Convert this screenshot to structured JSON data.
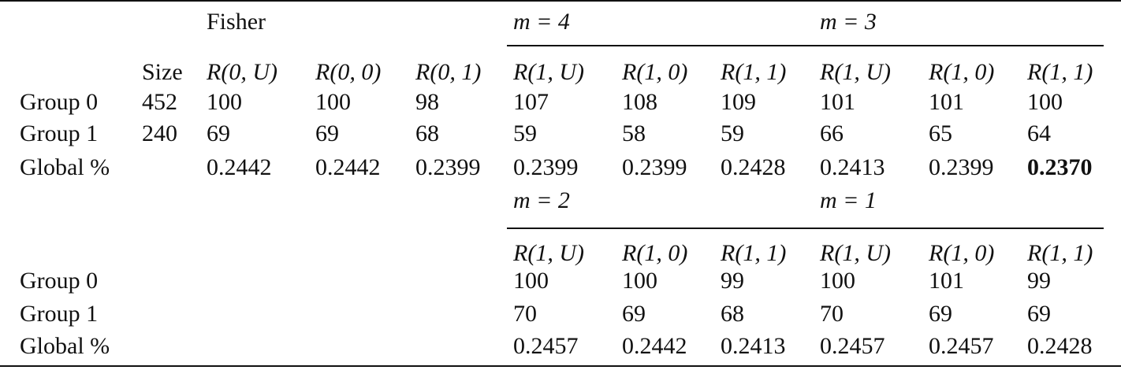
{
  "section1": {
    "group_headers": [
      "Fisher",
      "m = 4",
      "m = 3"
    ],
    "size_header": "Size",
    "columns": [
      "R(0, U)",
      "R(0, 0)",
      "R(0, 1)",
      "R(1, U)",
      "R(1, 0)",
      "R(1, 1)",
      "R(1, U)",
      "R(1, 0)",
      "R(1, 1)"
    ],
    "rows": [
      {
        "label": "Group 0",
        "size": "452",
        "values": [
          "100",
          "100",
          "98",
          "107",
          "108",
          "109",
          "101",
          "101",
          "100"
        ]
      },
      {
        "label": "Group 1",
        "size": "240",
        "values": [
          "69",
          "69",
          "68",
          "59",
          "58",
          "59",
          "66",
          "65",
          "64"
        ]
      },
      {
        "label": "Global %",
        "values": [
          "0.2442",
          "0.2442",
          "0.2399",
          "0.2399",
          "0.2399",
          "0.2428",
          "0.2413",
          "0.2399",
          "0.2370"
        ]
      }
    ]
  },
  "section2": {
    "group_headers": [
      "m = 2",
      "m = 1"
    ],
    "columns": [
      "R(1, U)",
      "R(1, 0)",
      "R(1, 1)",
      "R(1, U)",
      "R(1, 0)",
      "R(1, 1)"
    ],
    "rows": [
      {
        "label": "Group 0",
        "values": [
          "100",
          "100",
          "99",
          "100",
          "101",
          "99"
        ]
      },
      {
        "label": "Group 1",
        "values": [
          "70",
          "69",
          "68",
          "70",
          "69",
          "69"
        ]
      },
      {
        "label": "Global %",
        "values": [
          "0.2457",
          "0.2442",
          "0.2413",
          "0.2457",
          "0.2457",
          "0.2428"
        ]
      }
    ]
  }
}
